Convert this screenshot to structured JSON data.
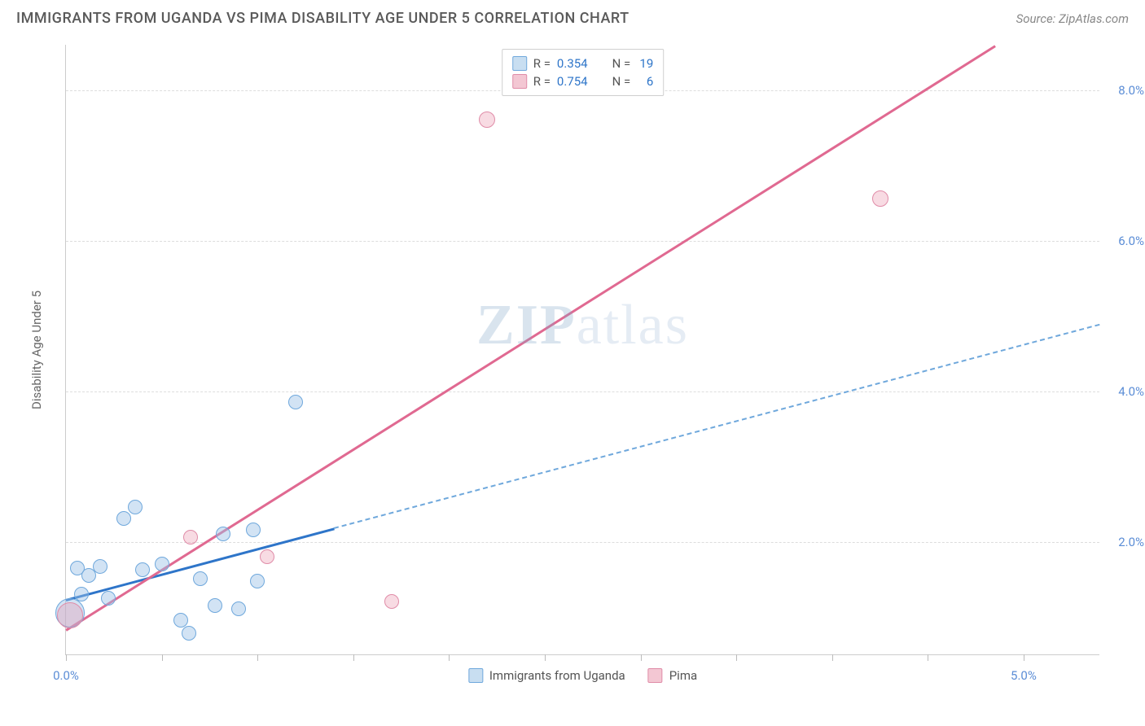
{
  "header": {
    "title": "IMMIGRANTS FROM UGANDA VS PIMA DISABILITY AGE UNDER 5 CORRELATION CHART",
    "source": "Source: ZipAtlas.com"
  },
  "watermark": {
    "bold": "ZIP",
    "rest": "atlas"
  },
  "chart": {
    "type": "scatter",
    "y_title": "Disability Age Under 5",
    "xlim": [
      0.0,
      5.4
    ],
    "ylim": [
      0.5,
      8.6
    ],
    "x_tick_positions": [
      0.0,
      0.5,
      1.0,
      1.5,
      2.0,
      2.5,
      3.0,
      3.5,
      4.0,
      4.5,
      5.0
    ],
    "y_tick_positions": [
      2.0,
      4.0,
      6.0,
      8.0
    ],
    "x_axis_labels": [
      {
        "pos": 0.0,
        "text": "0.0%"
      },
      {
        "pos": 5.0,
        "text": "5.0%"
      }
    ],
    "y_axis_labels": [
      {
        "pos": 2.0,
        "text": "2.0%"
      },
      {
        "pos": 4.0,
        "text": "4.0%"
      },
      {
        "pos": 6.0,
        "text": "6.0%"
      },
      {
        "pos": 8.0,
        "text": "8.0%"
      }
    ],
    "background_color": "#ffffff",
    "grid_color": "#dddddd",
    "axis_color": "#cccccc",
    "marker_default_size": 18
  },
  "series": [
    {
      "id": "uganda",
      "label": "Immigrants from Uganda",
      "color_fill": "rgba(155,194,230,0.45)",
      "color_stroke": "#6fa8dc",
      "css_class": "series-a",
      "R": "0.354",
      "N": "19",
      "points": [
        {
          "x": 0.02,
          "y": 1.05,
          "size": 36
        },
        {
          "x": 0.06,
          "y": 1.65,
          "size": 18
        },
        {
          "x": 0.08,
          "y": 1.3,
          "size": 18
        },
        {
          "x": 0.12,
          "y": 1.55,
          "size": 18
        },
        {
          "x": 0.18,
          "y": 1.67,
          "size": 18
        },
        {
          "x": 0.22,
          "y": 1.25,
          "size": 18
        },
        {
          "x": 0.3,
          "y": 2.3,
          "size": 18
        },
        {
          "x": 0.36,
          "y": 2.45,
          "size": 18
        },
        {
          "x": 0.4,
          "y": 1.62,
          "size": 18
        },
        {
          "x": 0.5,
          "y": 1.7,
          "size": 18
        },
        {
          "x": 0.6,
          "y": 0.95,
          "size": 18
        },
        {
          "x": 0.64,
          "y": 0.78,
          "size": 18
        },
        {
          "x": 0.7,
          "y": 1.5,
          "size": 18
        },
        {
          "x": 0.78,
          "y": 1.15,
          "size": 18
        },
        {
          "x": 0.82,
          "y": 2.1,
          "size": 18
        },
        {
          "x": 0.9,
          "y": 1.1,
          "size": 18
        },
        {
          "x": 1.0,
          "y": 1.47,
          "size": 18
        },
        {
          "x": 0.98,
          "y": 2.15,
          "size": 18
        },
        {
          "x": 1.2,
          "y": 3.85,
          "size": 18
        }
      ],
      "trend": {
        "color": "#2e75c9",
        "width": 3,
        "style_solid_until_x": 1.4,
        "p1": {
          "x": 0.0,
          "y": 1.25
        },
        "p2": {
          "x": 5.4,
          "y": 4.9
        }
      }
    },
    {
      "id": "pima",
      "label": "Pima",
      "color_fill": "rgba(234,153,175,0.35)",
      "color_stroke": "#e08ca8",
      "css_class": "series-b",
      "R": "0.754",
      "N": "6",
      "points": [
        {
          "x": 0.02,
          "y": 1.02,
          "size": 32
        },
        {
          "x": 0.65,
          "y": 2.05,
          "size": 18
        },
        {
          "x": 1.05,
          "y": 1.8,
          "size": 18
        },
        {
          "x": 1.7,
          "y": 1.2,
          "size": 18
        },
        {
          "x": 2.2,
          "y": 7.6,
          "size": 20
        },
        {
          "x": 4.25,
          "y": 6.55,
          "size": 20
        }
      ],
      "trend": {
        "color": "#e06991",
        "width": 2.5,
        "style_solid_until_x": 5.4,
        "p1": {
          "x": 0.0,
          "y": 0.85
        },
        "p2": {
          "x": 4.85,
          "y": 8.6
        }
      }
    }
  ],
  "legend_top": {
    "rows": [
      {
        "swatch": "blue",
        "r_label": "R =",
        "r_val": "0.354",
        "n_label": "N =",
        "n_val": "19"
      },
      {
        "swatch": "pink",
        "r_label": "R =",
        "r_val": "0.754",
        "n_label": "N =",
        "n_val": "6"
      }
    ]
  },
  "legend_bottom": {
    "items": [
      {
        "swatch": "blue",
        "label": "Immigrants from Uganda"
      },
      {
        "swatch": "pink",
        "label": "Pima"
      }
    ]
  }
}
